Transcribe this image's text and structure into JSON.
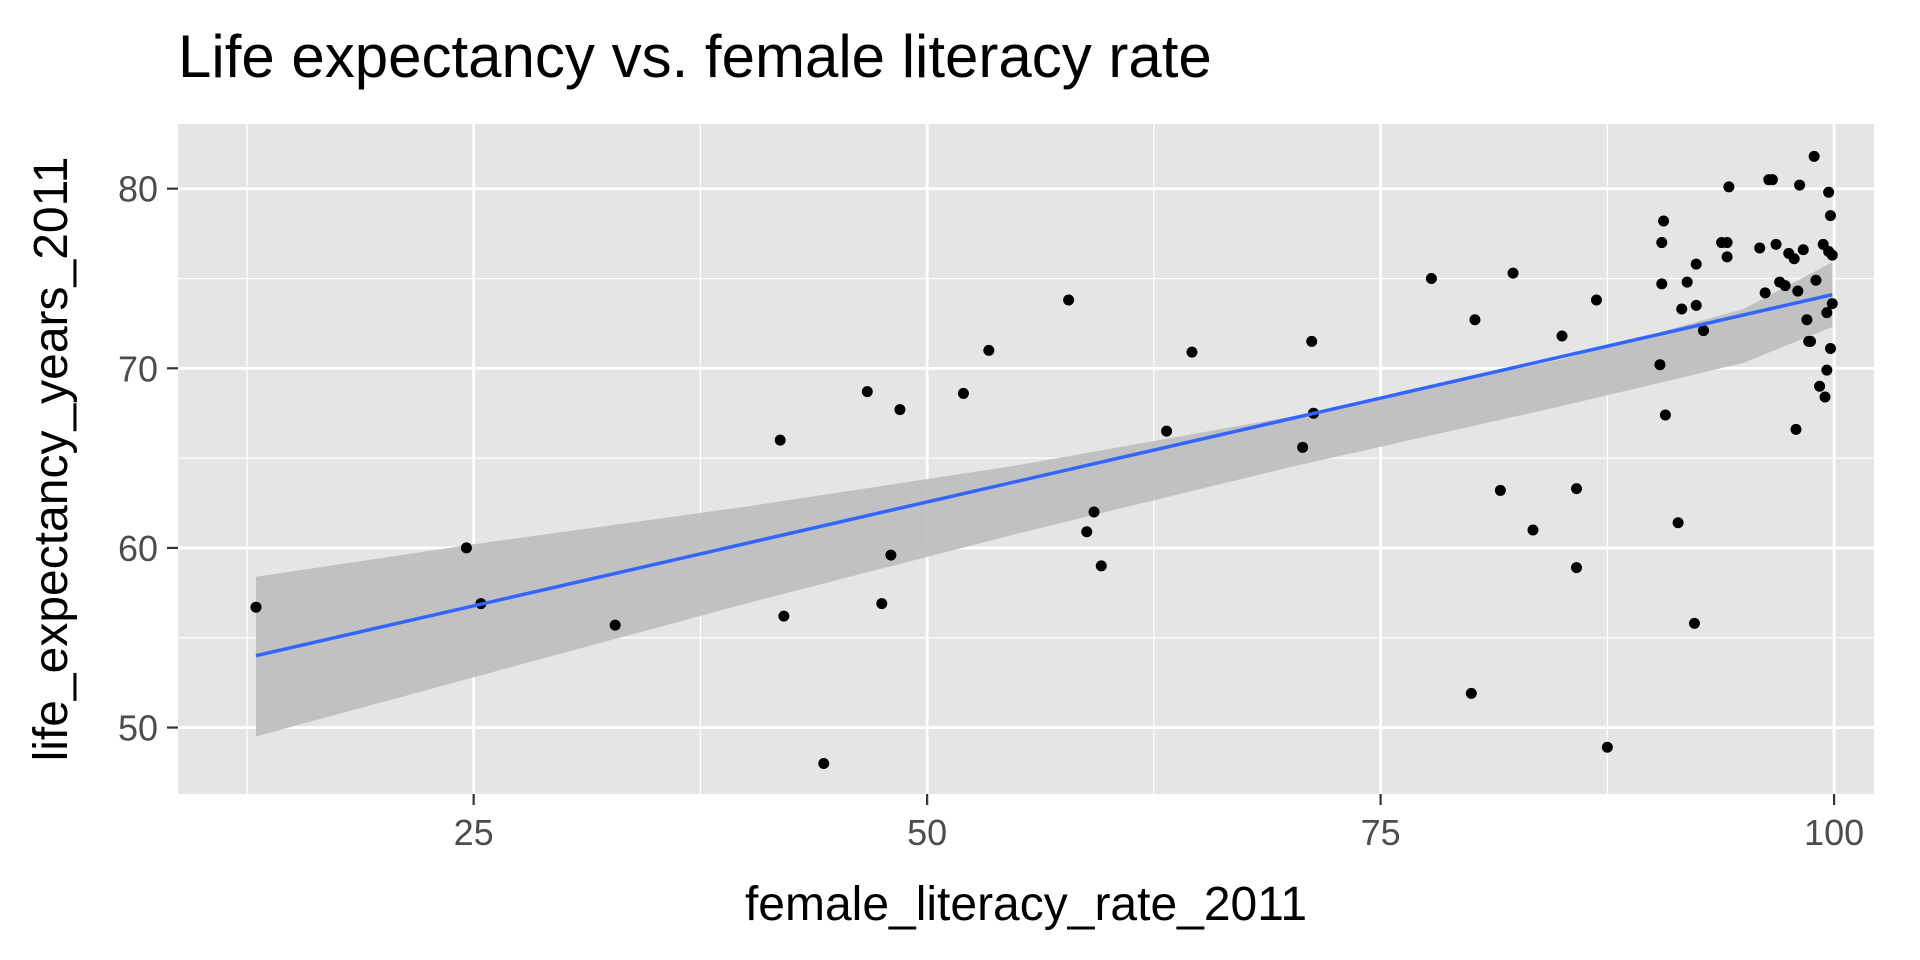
{
  "chart_data": {
    "type": "scatter",
    "title": "Life expectancy vs. female literacy rate",
    "xlabel": "female_literacy_rate_2011",
    "ylabel": "life_expectancy_years_2011",
    "xlim": [
      8.7,
      102.2
    ],
    "ylim": [
      46.3,
      83.6
    ],
    "x_ticks": [
      25,
      50,
      75,
      100
    ],
    "x_tick_labels": [
      "25",
      "50",
      "75",
      "100"
    ],
    "y_ticks": [
      50,
      60,
      70,
      80
    ],
    "y_tick_labels": [
      "50",
      "60",
      "70",
      "80"
    ],
    "grid": true,
    "legend": "none",
    "colors": {
      "panel": "#e5e5e5",
      "grid": "#ffffff",
      "points": "#000000",
      "fit_line": "#3366ff",
      "ribbon": "#bdbdbd"
    },
    "points": [
      [
        13.0,
        56.7
      ],
      [
        24.6,
        60.0
      ],
      [
        25.4,
        56.9
      ],
      [
        32.8,
        55.7
      ],
      [
        41.9,
        66.0
      ],
      [
        42.1,
        56.2
      ],
      [
        44.3,
        48.0
      ],
      [
        46.7,
        68.7
      ],
      [
        47.5,
        56.9
      ],
      [
        48.0,
        59.6
      ],
      [
        48.5,
        67.7
      ],
      [
        52.0,
        68.6
      ],
      [
        53.4,
        71.0
      ],
      [
        57.8,
        73.8
      ],
      [
        58.8,
        60.9
      ],
      [
        59.2,
        62.0
      ],
      [
        59.6,
        59.0
      ],
      [
        63.2,
        66.5
      ],
      [
        64.6,
        70.9
      ],
      [
        70.7,
        65.6
      ],
      [
        71.2,
        71.5
      ],
      [
        71.3,
        67.5
      ],
      [
        77.8,
        75.0
      ],
      [
        80.0,
        51.9
      ],
      [
        80.2,
        72.7
      ],
      [
        81.6,
        63.2
      ],
      [
        82.3,
        75.3
      ],
      [
        83.4,
        61.0
      ],
      [
        85.0,
        71.8
      ],
      [
        85.8,
        63.3
      ],
      [
        85.8,
        58.9
      ],
      [
        86.9,
        73.8
      ],
      [
        87.5,
        48.9
      ],
      [
        90.4,
        70.2
      ],
      [
        90.5,
        77.0
      ],
      [
        90.5,
        74.7
      ],
      [
        90.6,
        78.2
      ],
      [
        90.7,
        67.4
      ],
      [
        91.4,
        61.4
      ],
      [
        91.6,
        73.3
      ],
      [
        91.9,
        74.8
      ],
      [
        92.3,
        55.8
      ],
      [
        92.4,
        73.5
      ],
      [
        92.4,
        75.8
      ],
      [
        92.8,
        72.1
      ],
      [
        93.8,
        77.0
      ],
      [
        94.1,
        77.0
      ],
      [
        94.1,
        76.2
      ],
      [
        94.2,
        80.1
      ],
      [
        95.9,
        76.7
      ],
      [
        96.2,
        74.2
      ],
      [
        96.4,
        80.5
      ],
      [
        96.6,
        80.5
      ],
      [
        96.8,
        76.9
      ],
      [
        97.0,
        74.8
      ],
      [
        97.3,
        74.6
      ],
      [
        97.5,
        76.4
      ],
      [
        97.8,
        76.1
      ],
      [
        97.9,
        66.6
      ],
      [
        98.0,
        74.3
      ],
      [
        98.1,
        80.2
      ],
      [
        98.3,
        76.6
      ],
      [
        98.5,
        72.7
      ],
      [
        98.6,
        71.5
      ],
      [
        98.7,
        71.5
      ],
      [
        98.9,
        81.8
      ],
      [
        99.0,
        74.9
      ],
      [
        99.2,
        69.0
      ],
      [
        99.4,
        76.9
      ],
      [
        99.5,
        68.4
      ],
      [
        99.6,
        73.1
      ],
      [
        99.6,
        69.9
      ],
      [
        99.7,
        79.8
      ],
      [
        99.7,
        76.5
      ],
      [
        99.8,
        71.1
      ],
      [
        99.8,
        78.5
      ],
      [
        99.9,
        76.3
      ],
      [
        99.9,
        73.6
      ]
    ],
    "fit_line": {
      "x": [
        13.0,
        99.9
      ],
      "y": [
        54.0,
        74.1
      ]
    },
    "confidence_band": {
      "x": [
        13.0,
        25,
        40,
        55,
        70,
        85,
        95,
        99.9
      ],
      "lower": [
        49.5,
        52.8,
        56.9,
        60.8,
        64.5,
        67.9,
        70.3,
        72.3
      ],
      "upper": [
        58.4,
        60.2,
        62.3,
        64.6,
        67.3,
        70.5,
        73.3,
        75.9
      ]
    }
  }
}
